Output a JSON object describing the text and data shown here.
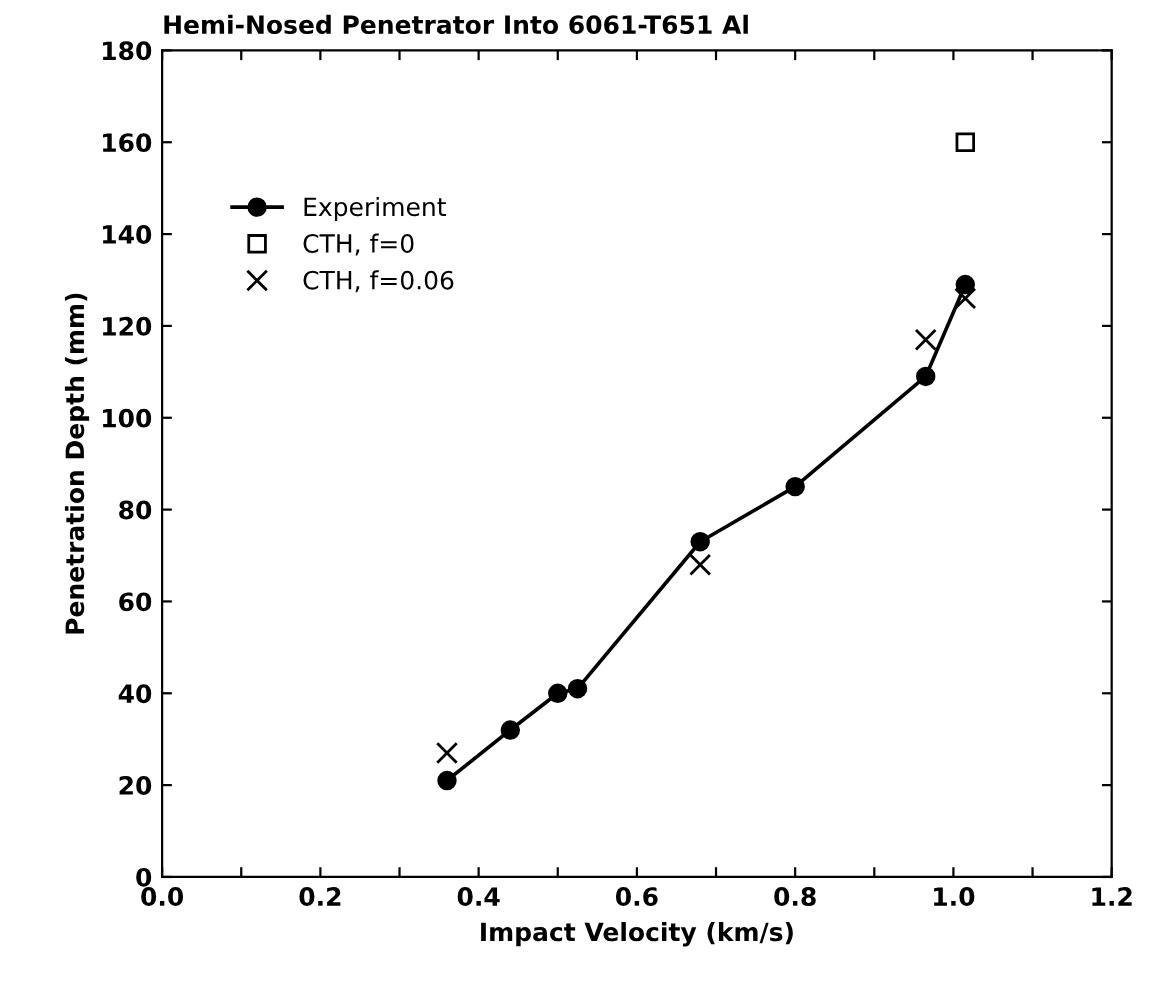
{
  "chart_data": {
    "type": "line",
    "title": "Hemi-Nosed Penetrator Into 6061-T651 Al",
    "xlabel": "Impact Velocity (km/s)",
    "ylabel": "Penetration Depth (mm)",
    "xlim": [
      0,
      1.2
    ],
    "ylim": [
      0,
      180
    ],
    "xticks": [
      {
        "value": 0,
        "label": "0.0"
      },
      {
        "value": 0.1,
        "label": null
      },
      {
        "value": 0.2,
        "label": "0.2"
      },
      {
        "value": 0.3,
        "label": null
      },
      {
        "value": 0.4,
        "label": "0.4"
      },
      {
        "value": 0.5,
        "label": null
      },
      {
        "value": 0.6,
        "label": "0.6"
      },
      {
        "value": 0.7,
        "label": null
      },
      {
        "value": 0.8,
        "label": "0.8"
      },
      {
        "value": 0.9,
        "label": null
      },
      {
        "value": 1.0,
        "label": "1.0"
      },
      {
        "value": 1.1,
        "label": null
      },
      {
        "value": 1.2,
        "label": "1.2"
      }
    ],
    "yticks": [
      0,
      20,
      40,
      60,
      80,
      100,
      120,
      140,
      160,
      180
    ],
    "grid": false,
    "legend": "top left",
    "series": [
      {
        "name": "Experiment",
        "marker": "circle",
        "line_style": "solid",
        "color": "#000000",
        "x": [
          0.36,
          0.44,
          0.5,
          0.525,
          0.68,
          0.8,
          0.965,
          1.015
        ],
        "values": [
          21,
          32,
          40,
          41,
          73,
          85,
          109,
          129
        ]
      },
      {
        "name": "CTH, f=0",
        "type": "scatter",
        "marker": "square",
        "color": "#000000",
        "x": [
          1.015
        ],
        "values": [
          160
        ]
      },
      {
        "name": "CTH, f=0.06",
        "type": "scatter",
        "marker": "cross",
        "color": "#000000",
        "x": [
          0.36,
          0.68,
          0.965,
          1.015
        ],
        "values": [
          27,
          68,
          117,
          126
        ]
      }
    ]
  }
}
